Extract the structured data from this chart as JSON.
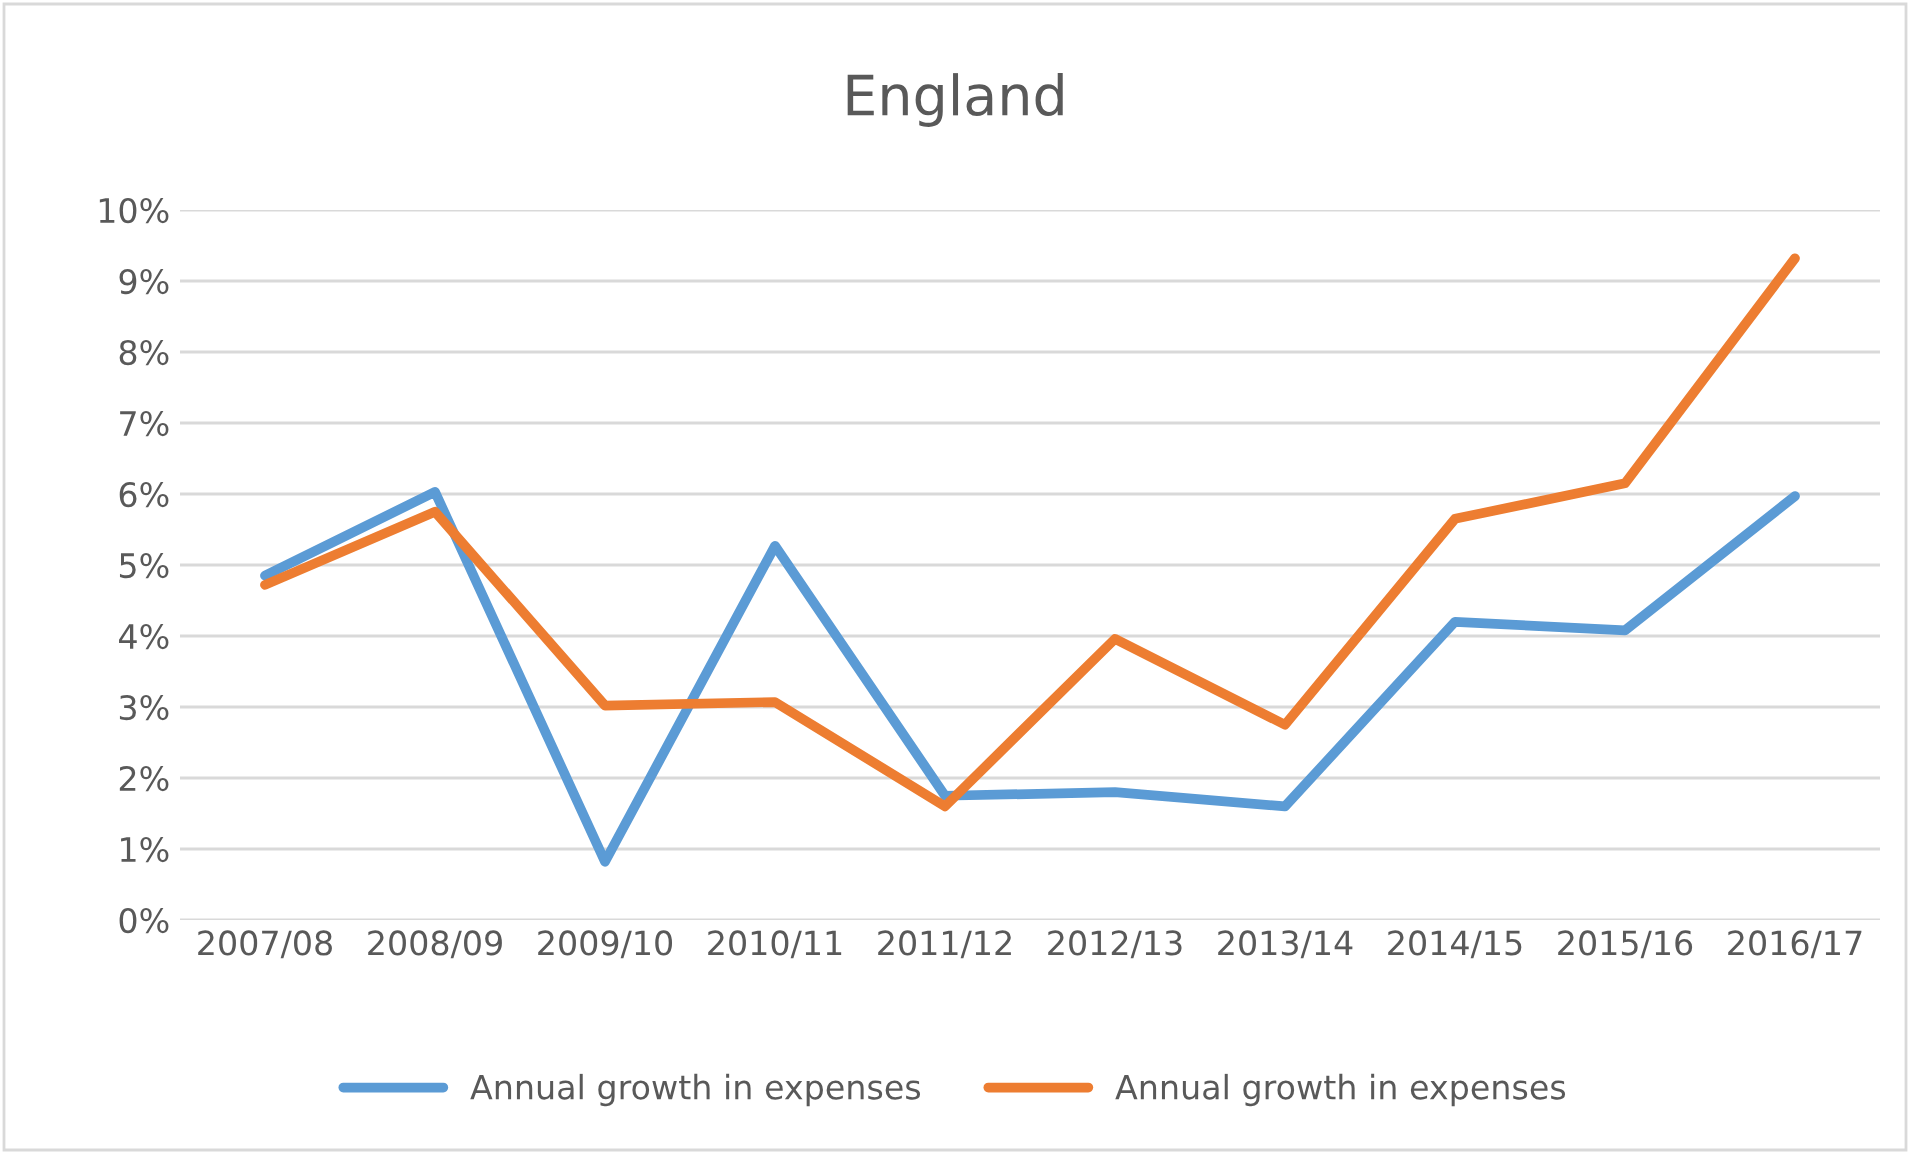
{
  "chart_data": {
    "type": "line",
    "title": "England",
    "categories": [
      "2007/08",
      "2008/09",
      "2009/10",
      "2010/11",
      "2011/12",
      "2012/13",
      "2013/14",
      "2014/15",
      "2015/16",
      "2016/17"
    ],
    "series": [
      {
        "name": "Annual growth in expenses",
        "color": "#5b9bd5",
        "values": [
          4.85,
          6.03,
          0.82,
          5.27,
          1.75,
          1.8,
          1.6,
          4.2,
          4.08,
          5.97
        ]
      },
      {
        "name": "Annual growth in expenses",
        "color": "#ed7d31",
        "values": [
          4.72,
          5.75,
          3.02,
          3.07,
          1.6,
          3.96,
          2.75,
          5.65,
          6.15,
          9.32
        ]
      }
    ],
    "ylim": [
      0,
      10
    ],
    "yticks": [
      {
        "value": 0,
        "label": "0%"
      },
      {
        "value": 1,
        "label": "1%"
      },
      {
        "value": 2,
        "label": "2%"
      },
      {
        "value": 3,
        "label": "3%"
      },
      {
        "value": 4,
        "label": "4%"
      },
      {
        "value": 5,
        "label": "5%"
      },
      {
        "value": 6,
        "label": "6%"
      },
      {
        "value": 7,
        "label": "7%"
      },
      {
        "value": 8,
        "label": "8%"
      },
      {
        "value": 9,
        "label": "9%"
      },
      {
        "value": 10,
        "label": "10%"
      }
    ],
    "grid": "y",
    "legend": "bottom",
    "marker": "none",
    "line_style": "solid"
  }
}
